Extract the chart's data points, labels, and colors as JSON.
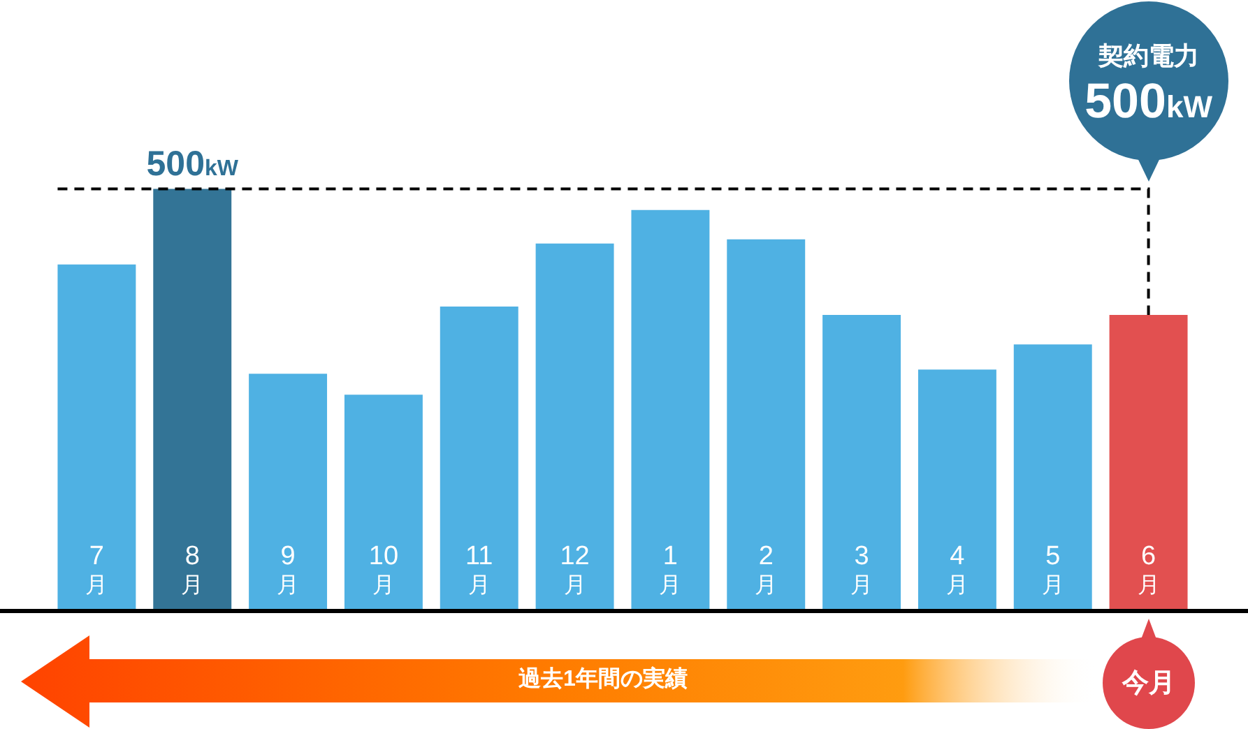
{
  "chart_data": {
    "type": "bar",
    "categories": [
      "7月",
      "8月",
      "9月",
      "10月",
      "11月",
      "12月",
      "1月",
      "2月",
      "3月",
      "4月",
      "5月",
      "6月"
    ],
    "values": [
      410,
      500,
      280,
      255,
      360,
      435,
      475,
      440,
      350,
      285,
      315,
      350
    ],
    "colors": [
      "#4fb1e3",
      "#337496",
      "#4fb1e3",
      "#4fb1e3",
      "#4fb1e3",
      "#4fb1e3",
      "#4fb1e3",
      "#4fb1e3",
      "#4fb1e3",
      "#4fb1e3",
      "#4fb1e3",
      "#e25050"
    ],
    "value_labels": [
      null,
      "500kW",
      null,
      null,
      null,
      null,
      null,
      null,
      null,
      null,
      null,
      null
    ],
    "ylim": [
      0,
      725
    ],
    "tick_labels": "x",
    "ref_lines": [
      {
        "axis": "y",
        "value": 500,
        "label": "契約電力 500kW",
        "color": "#000000",
        "line_style": "dashed"
      }
    ],
    "annotations": [
      "過去1年間の実績",
      "今月"
    ]
  }
}
